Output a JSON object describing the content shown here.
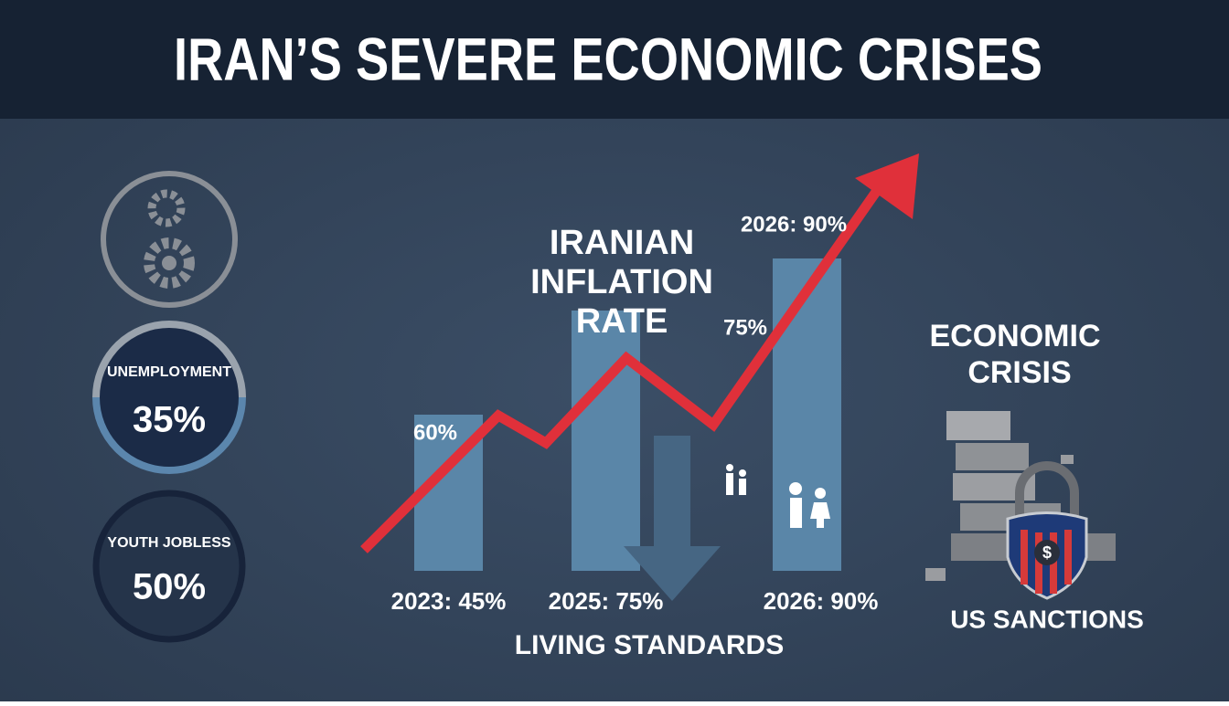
{
  "header": {
    "title": "IRAN’S SEVERE ECONOMIC CRISES"
  },
  "stats": [
    {
      "label": "UNEMPLOYMENT",
      "value": "35%"
    },
    {
      "label": "YOUTH JOBLESS",
      "value": "50%"
    }
  ],
  "inflation": {
    "title_lines": [
      "IRANIAN",
      "INFLATION",
      "RATE"
    ],
    "bars": [
      {
        "label": "2023: 45%",
        "value": 45
      },
      {
        "label": "2025: 75%",
        "value": 75
      },
      {
        "label": "2026: 90%",
        "value": 90
      }
    ],
    "annotations": [
      "60%",
      "75%",
      "2026: 90%"
    ]
  },
  "living_standards": "LIVING STANDARDS",
  "crisis": {
    "title_lines": [
      "ECONOMIC",
      "CRISIS"
    ],
    "sanctions": "US SANCTIONS"
  }
}
